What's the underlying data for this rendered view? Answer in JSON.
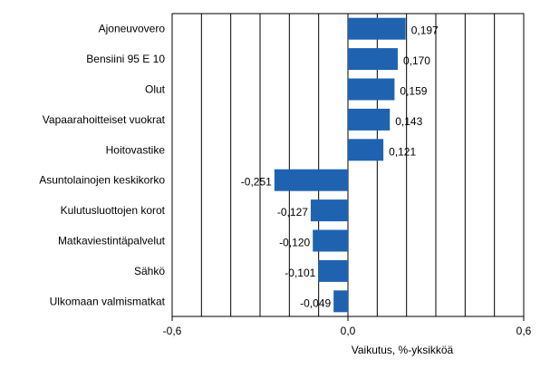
{
  "chart_data": {
    "type": "bar",
    "orientation": "horizontal",
    "categories": [
      "Ajoneuvovero",
      "Bensiini 95 E 10",
      "Olut",
      "Vapaarahoitteiset vuokrat",
      "Hoitovastike",
      "Asuntolainojen keskikorko",
      "Kulutusluottojen korot",
      "Matkaviestintäpalvelut",
      "Sähkö",
      "Ulkomaan valmismatkat"
    ],
    "values": [
      0.197,
      0.17,
      0.159,
      0.143,
      0.121,
      -0.251,
      -0.127,
      -0.12,
      -0.101,
      -0.049
    ],
    "value_labels": [
      "0,197",
      "0,170",
      "0,159",
      "0,143",
      "0,121",
      "-0,251",
      "-0,127",
      "-0,120",
      "-0,101",
      "-0,049"
    ],
    "xlim": [
      -0.6,
      0.6
    ],
    "xticks": [
      -0.6,
      0.0,
      0.6
    ],
    "xtick_labels": [
      "-0,6",
      "0,0",
      "0,6"
    ],
    "gridlines": [
      -0.6,
      -0.5,
      -0.4,
      -0.3,
      -0.2,
      -0.1,
      0.0,
      0.1,
      0.2,
      0.3,
      0.4,
      0.5,
      0.6
    ],
    "grid": true,
    "xlabel": "Vaikutus, %-yksikköä",
    "ylabel": "",
    "title": "",
    "bar_color": "#1f63b0",
    "grid_color": "#000000"
  }
}
